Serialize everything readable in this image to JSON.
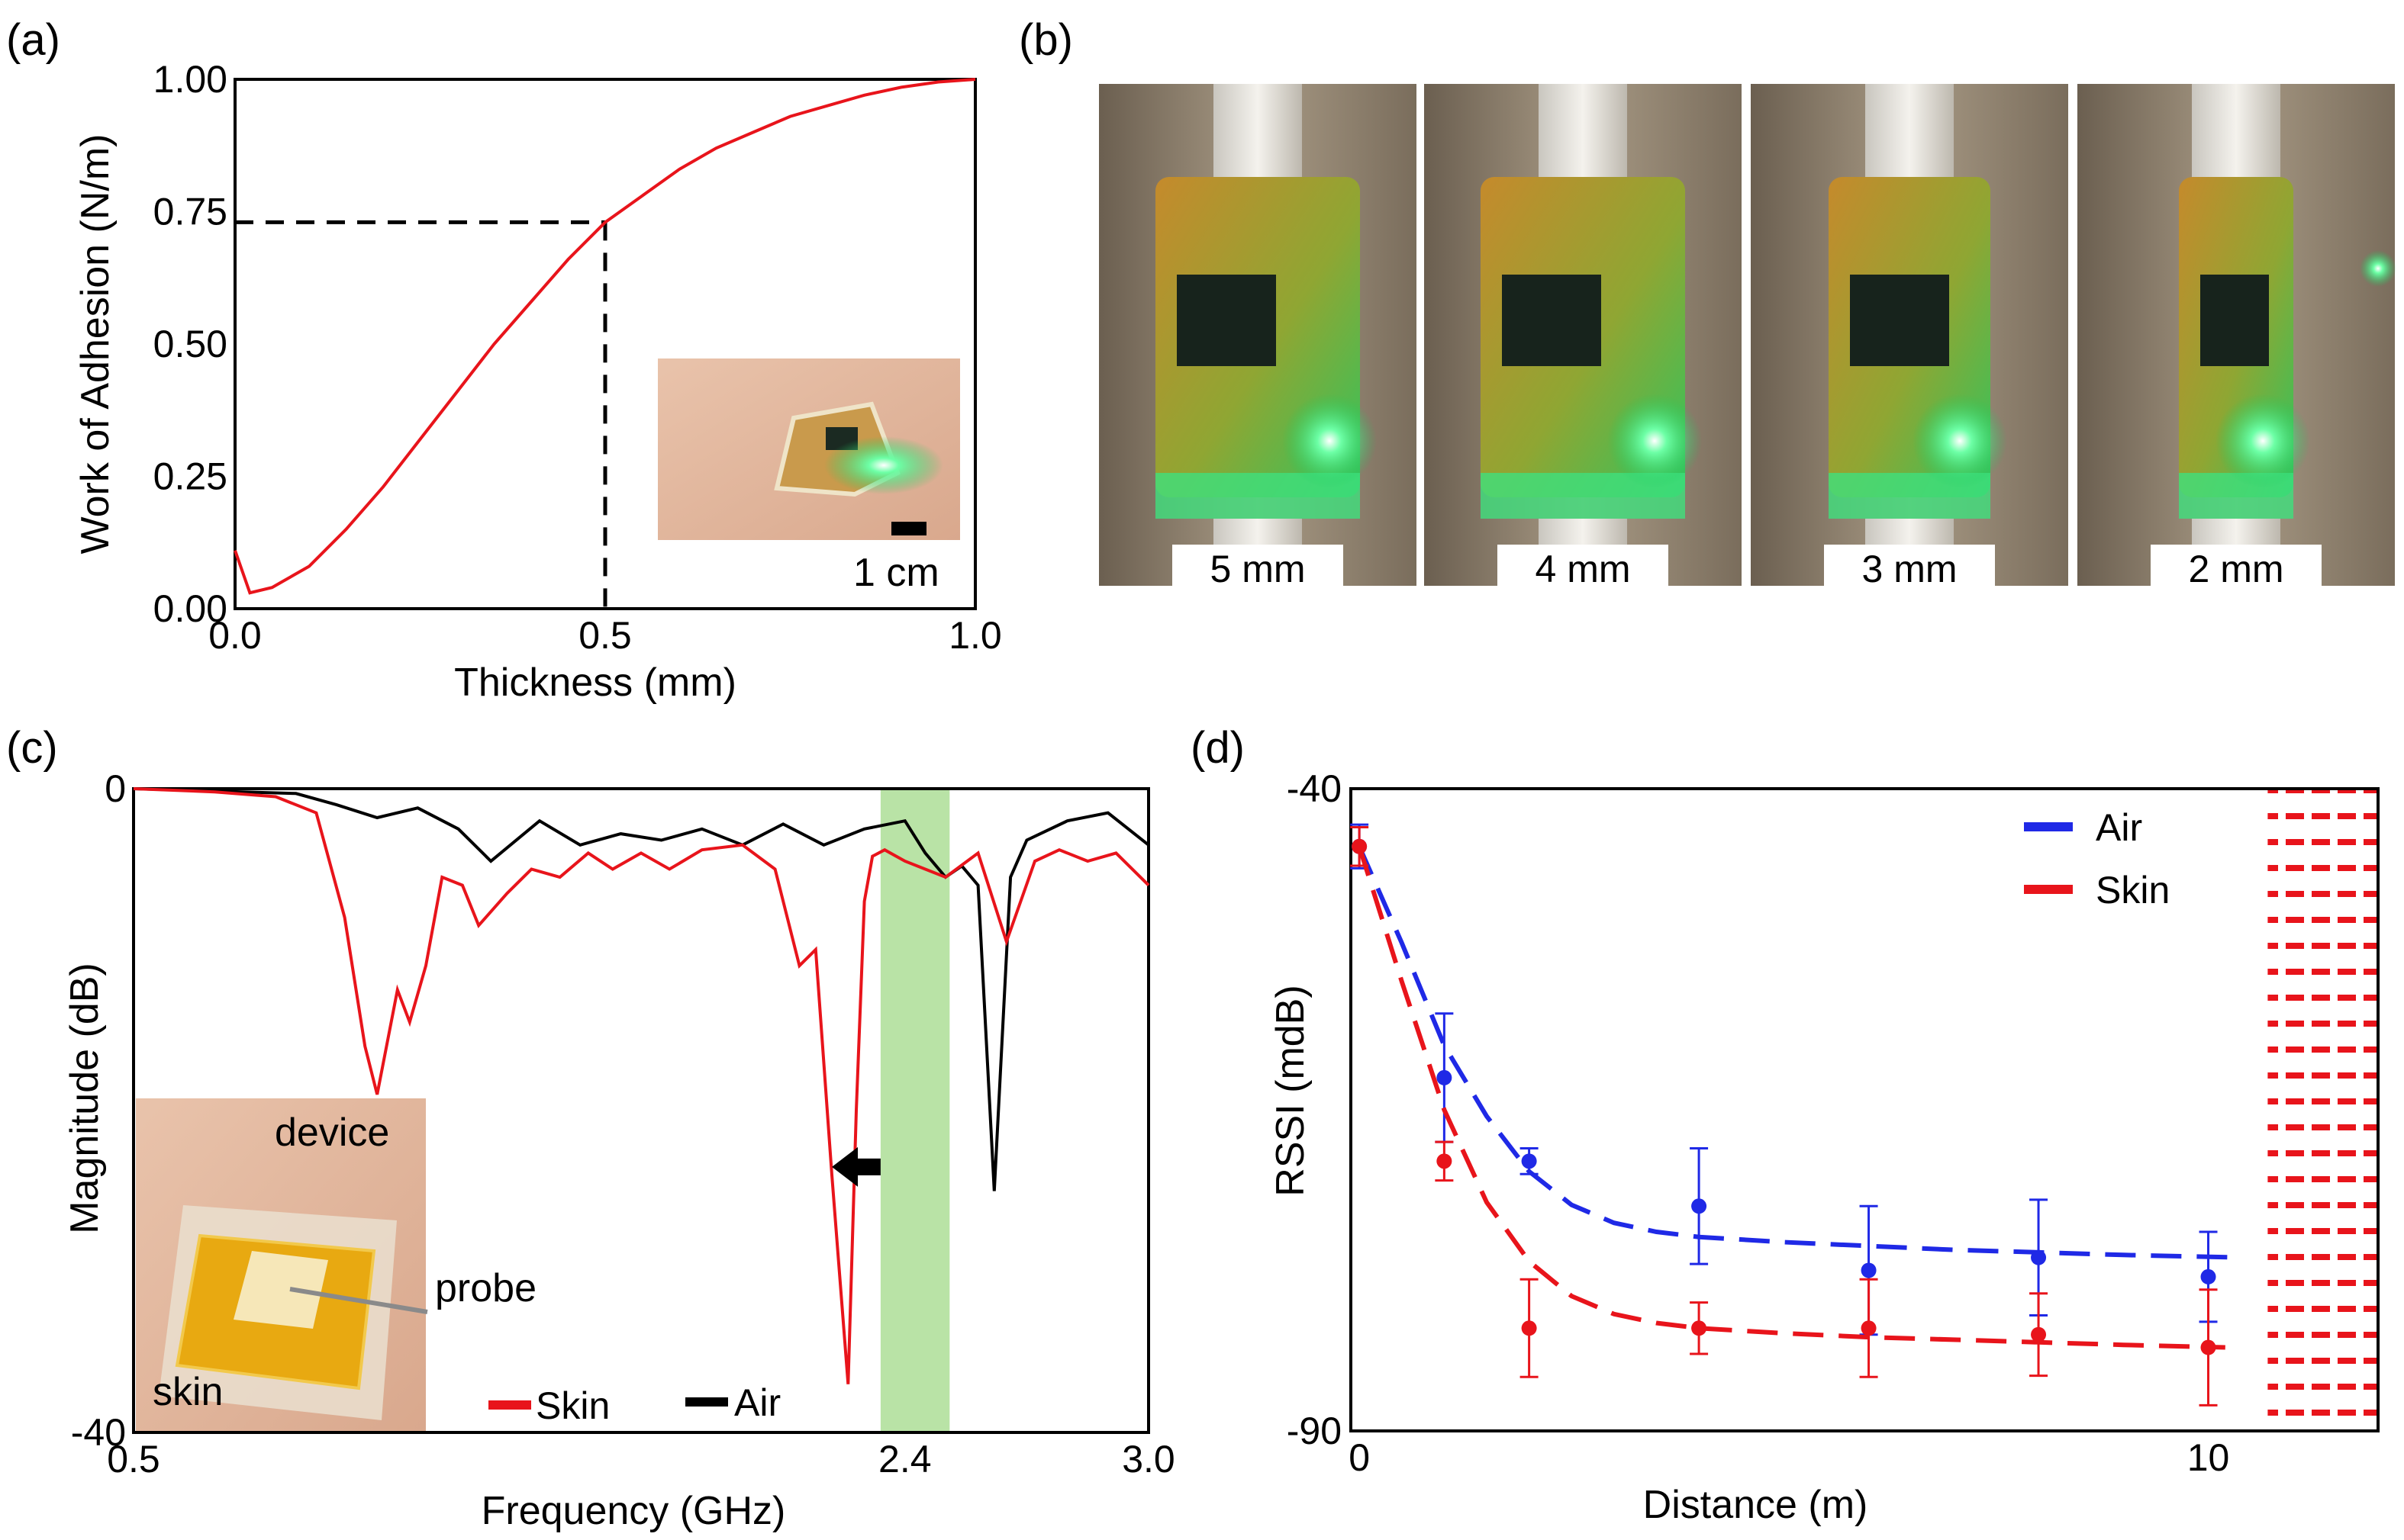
{
  "figure": {
    "panels": [
      "(a)",
      "(b)",
      "(c)",
      "(d)"
    ]
  },
  "colors": {
    "red": "#e8141b",
    "blue": "#1f29e6",
    "black": "#000000",
    "band": "#b9e3a6",
    "glow": "#35f07a"
  },
  "photos_b": {
    "labels": [
      "5 mm",
      "4 mm",
      "3 mm",
      "2 mm"
    ]
  },
  "inset_a": {
    "scale_label": "1 cm"
  },
  "inset_c": {
    "device": "device",
    "probe": "probe",
    "skin": "skin"
  },
  "chart_data": [
    {
      "panel": "(a)",
      "type": "line",
      "xlabel": "Thickness (mm)",
      "ylabel": "Work of Adhesion (N/m)",
      "xlim": [
        0.0,
        1.0
      ],
      "ylim": [
        0.0,
        1.0
      ],
      "xticks": [
        "0.0",
        "0.5",
        "1.0"
      ],
      "yticks": [
        "0.00",
        "0.25",
        "0.50",
        "0.75",
        "1.00"
      ],
      "series": [
        {
          "name": "Work of Adhesion",
          "color": "#e8141b",
          "x": [
            0.0,
            0.02,
            0.05,
            0.1,
            0.15,
            0.2,
            0.25,
            0.3,
            0.35,
            0.4,
            0.45,
            0.5,
            0.55,
            0.6,
            0.65,
            0.7,
            0.75,
            0.8,
            0.85,
            0.9,
            0.95,
            1.0
          ],
          "y": [
            0.11,
            0.03,
            0.04,
            0.08,
            0.15,
            0.23,
            0.32,
            0.41,
            0.5,
            0.58,
            0.66,
            0.73,
            0.78,
            0.83,
            0.87,
            0.9,
            0.93,
            0.95,
            0.97,
            0.985,
            0.995,
            1.0
          ]
        }
      ],
      "annotation": {
        "x": 0.5,
        "y": 0.73,
        "style": "dashed guide lines"
      }
    },
    {
      "panel": "(c)",
      "type": "line",
      "xlabel": "Frequency (GHz)",
      "ylabel": "Magnitude (dB)",
      "xlim": [
        0.5,
        3.0
      ],
      "ylim": [
        -40,
        0
      ],
      "xticks": [
        "0.5",
        "2.4",
        "3.0"
      ],
      "yticks": [
        "0",
        "-40"
      ],
      "highlight_band": [
        2.34,
        2.51
      ],
      "arrow": {
        "from_x": 2.34,
        "to_x": 2.22,
        "y": -23.5
      },
      "series": [
        {
          "name": "Skin",
          "color": "#e8141b",
          "x": [
            0.5,
            0.7,
            0.85,
            0.95,
            1.02,
            1.07,
            1.1,
            1.15,
            1.18,
            1.22,
            1.26,
            1.31,
            1.35,
            1.42,
            1.48,
            1.55,
            1.62,
            1.68,
            1.75,
            1.82,
            1.9,
            2.0,
            2.08,
            2.14,
            2.18,
            2.22,
            2.26,
            2.28,
            2.3,
            2.32,
            2.35,
            2.4,
            2.5,
            2.58,
            2.65,
            2.72,
            2.78,
            2.85,
            2.92,
            3.0
          ],
          "y": [
            0,
            -0.2,
            -0.5,
            -1.5,
            -8,
            -16,
            -19,
            -12.5,
            -14.5,
            -11,
            -5.5,
            -6,
            -8.5,
            -6.5,
            -5,
            -5.5,
            -4,
            -5,
            -4,
            -5,
            -3.8,
            -3.5,
            -5,
            -11,
            -10,
            -24,
            -37,
            -20,
            -7,
            -4.2,
            -3.8,
            -4.5,
            -5.5,
            -4,
            -9.5,
            -4.5,
            -3.8,
            -4.5,
            -4,
            -6
          ]
        },
        {
          "name": "Air",
          "color": "#000000",
          "x": [
            0.5,
            0.9,
            1.0,
            1.1,
            1.2,
            1.3,
            1.38,
            1.5,
            1.6,
            1.7,
            1.8,
            1.9,
            2.0,
            2.1,
            2.2,
            2.3,
            2.4,
            2.45,
            2.5,
            2.54,
            2.58,
            2.62,
            2.66,
            2.7,
            2.8,
            2.9,
            3.0
          ],
          "y": [
            0,
            -0.3,
            -1,
            -1.8,
            -1.2,
            -2.5,
            -4.5,
            -2,
            -3.5,
            -2.8,
            -3.2,
            -2.5,
            -3.5,
            -2.2,
            -3.5,
            -2.5,
            -2,
            -4,
            -5.5,
            -4.8,
            -6,
            -25,
            -5.5,
            -3.2,
            -2,
            -1.5,
            -3.5
          ]
        }
      ]
    },
    {
      "panel": "(d)",
      "type": "line",
      "xlabel": "Distance (m)",
      "ylabel": "RSSI (mdB)",
      "xlim": [
        0,
        12
      ],
      "ylim": [
        -90,
        -40
      ],
      "xticks": [
        "0",
        "10"
      ],
      "yticks": [
        "-40",
        "-90"
      ],
      "hatched_region": [
        10.7,
        12
      ],
      "series": [
        {
          "name": "Air",
          "color": "#1f29e6",
          "x": [
            0,
            1,
            2,
            4,
            6,
            8,
            10
          ],
          "y": [
            -44.5,
            -62.5,
            -69,
            -72.5,
            -77.5,
            -76.5,
            -78
          ],
          "err": [
            1.7,
            5,
            1,
            4.5,
            5,
            4.5,
            3.5
          ],
          "fit_x": [
            0,
            0.5,
            1,
            1.5,
            2,
            2.5,
            3,
            3.5,
            4,
            5,
            6,
            7,
            8,
            9,
            10.4
          ],
          "fit_y": [
            -44.5,
            -52,
            -60,
            -65.5,
            -69.8,
            -72.4,
            -73.8,
            -74.5,
            -74.9,
            -75.3,
            -75.6,
            -75.9,
            -76.1,
            -76.3,
            -76.5
          ]
        },
        {
          "name": "Skin",
          "color": "#e8141b",
          "x": [
            0,
            1,
            2,
            4,
            6,
            8,
            10
          ],
          "y": [
            -44.5,
            -69,
            -82,
            -82,
            -82,
            -82.5,
            -83.5
          ],
          "err": [
            1.5,
            1.5,
            3.8,
            2,
            3.8,
            3.2,
            4.5
          ],
          "fit_x": [
            0,
            0.5,
            1,
            1.5,
            2,
            2.5,
            3,
            3.5,
            4,
            5,
            6,
            7,
            8,
            9,
            10.2
          ],
          "fit_y": [
            -44.5,
            -55,
            -65,
            -72.2,
            -76.8,
            -79.5,
            -80.9,
            -81.6,
            -82,
            -82.4,
            -82.7,
            -82.9,
            -83.1,
            -83.3,
            -83.5
          ]
        }
      ]
    }
  ]
}
